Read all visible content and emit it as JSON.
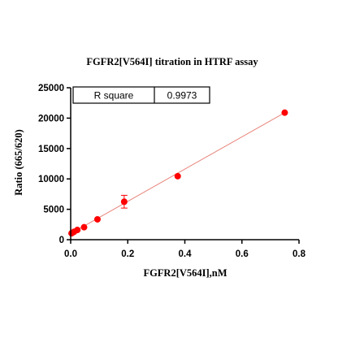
{
  "chart_data": {
    "type": "scatter",
    "title": "FGFR2[V564I] titration in HTRF assay",
    "xlabel": "FGFR2[V564I],nM",
    "ylabel": "Ratio (665/620)",
    "xlim": [
      0,
      0.8
    ],
    "ylim": [
      0,
      25000
    ],
    "xticks": [
      0.0,
      0.2,
      0.4,
      0.6,
      0.8
    ],
    "xtick_labels": [
      "0.0",
      "0.2",
      "0.4",
      "0.6",
      "0.8"
    ],
    "yticks": [
      0,
      5000,
      10000,
      15000,
      20000,
      25000
    ],
    "ytick_labels": [
      "0",
      "5000",
      "10000",
      "15000",
      "20000",
      "25000"
    ],
    "grid": false,
    "point_color": "#ff0000",
    "line_color": "#e8837a",
    "points": [
      {
        "x": 0.0029,
        "y": 1050,
        "err": 0
      },
      {
        "x": 0.0059,
        "y": 1150,
        "err": 0
      },
      {
        "x": 0.0117,
        "y": 1300,
        "err": 0
      },
      {
        "x": 0.0234,
        "y": 1600,
        "err": 0
      },
      {
        "x": 0.0469,
        "y": 2050,
        "err": 0
      },
      {
        "x": 0.0938,
        "y": 3350,
        "err": 0
      },
      {
        "x": 0.1875,
        "y": 6250,
        "err": 1050
      },
      {
        "x": 0.375,
        "y": 10450,
        "err": 0
      },
      {
        "x": 0.75,
        "y": 20900,
        "err": 0
      }
    ],
    "fit_line": {
      "x": [
        0.0,
        0.75
      ],
      "y": [
        1000,
        20900
      ]
    },
    "stats_table": {
      "label": "R square",
      "value": "0.9973"
    }
  }
}
